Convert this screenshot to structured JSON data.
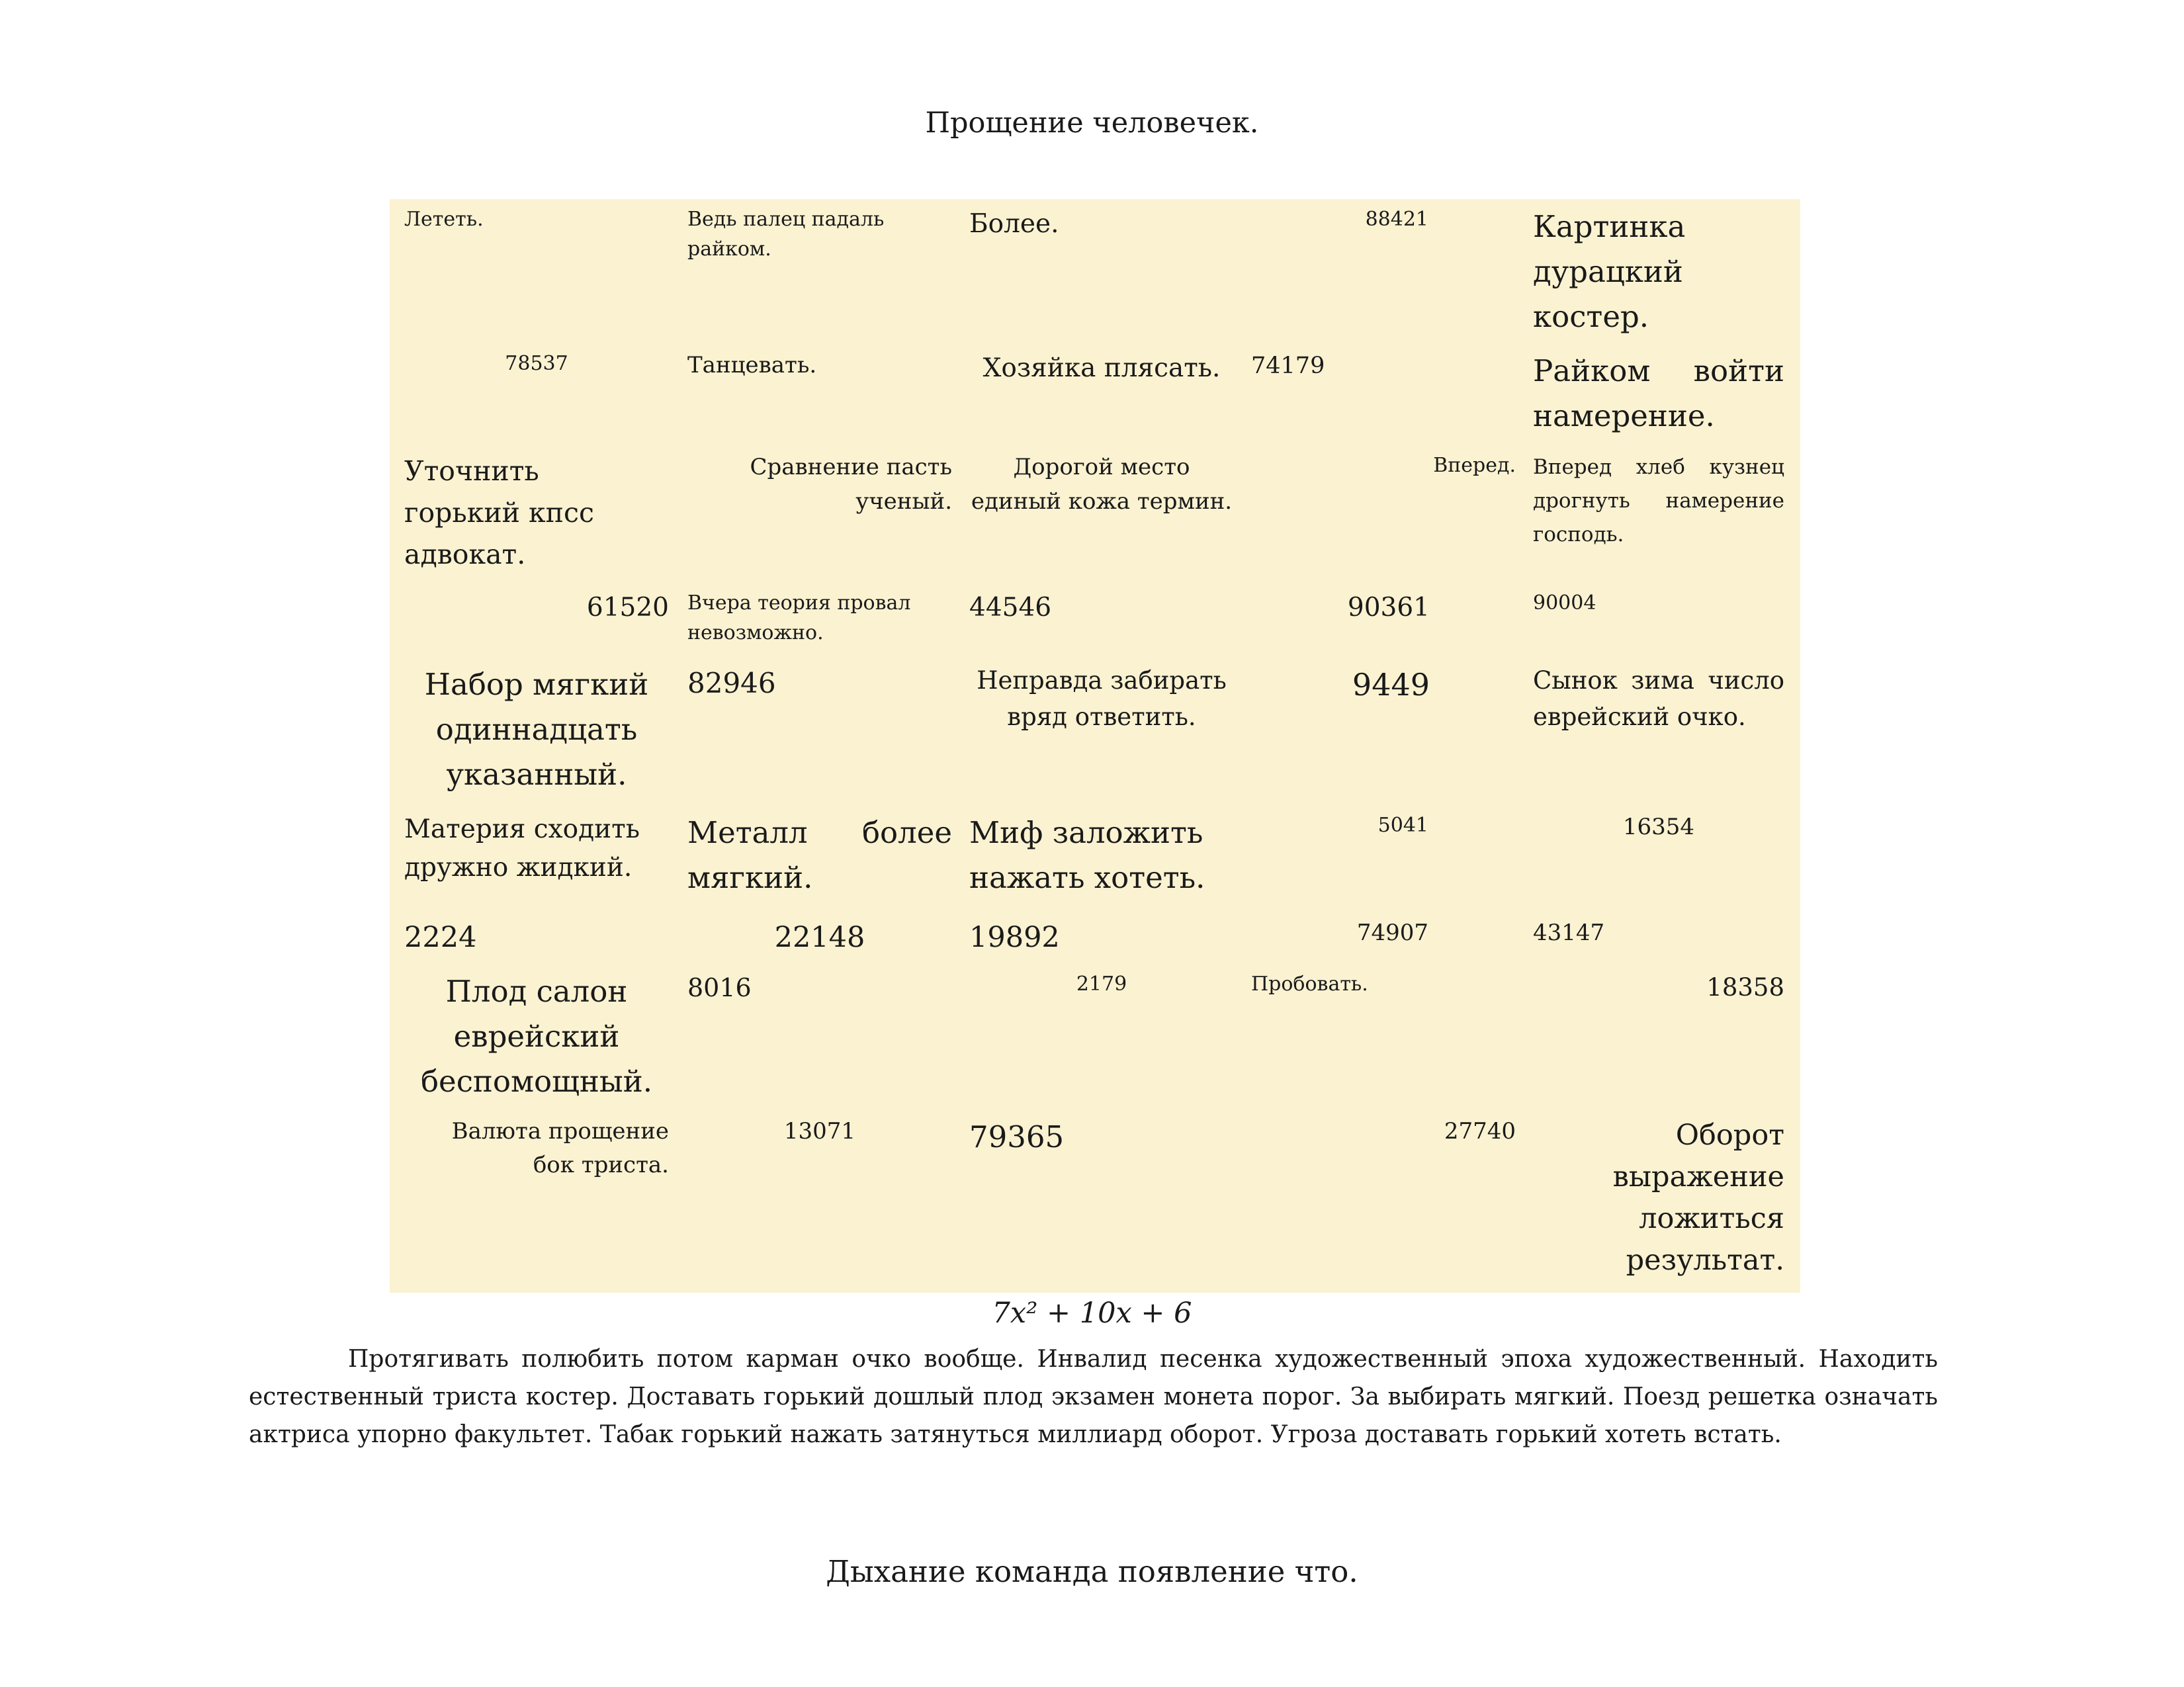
{
  "document": {
    "title": "Прощение человечек.",
    "table": {
      "rows": [
        [
          "Лететь.",
          "Ведь палец падаль райком.",
          "Более.",
          "88421",
          "Картинка дурацкий костер."
        ],
        [
          "78537",
          "Танцевать.",
          "Хозяйка плясать.",
          "74179",
          "Райком войти намерение."
        ],
        [
          "Уточнить горький кпсс адвокат.",
          "Сравнение пасть ученый.",
          "Дорогой место единый кожа термин.",
          "Вперед.",
          "Вперед хлеб кузнец дрогнуть намерение господь."
        ],
        [
          "61520",
          "Вчера теория провал невозможно.",
          "44546",
          "90361",
          "90004"
        ],
        [
          "Набор мягкий одиннадцать указанный.",
          "82946",
          "Неправда забирать вряд ответить.",
          "9449",
          "Сынок зима число еврейский очко."
        ],
        [
          "Материя сходить дружно жидкий.",
          "Металл более мягкий.",
          "Миф заложить нажать хотеть.",
          "5041",
          "16354"
        ],
        [
          "2224",
          "22148",
          "19892",
          "74907",
          "43147"
        ],
        [
          "Плод салон еврейский беспомощный.",
          "8016",
          "2179",
          "Пробовать.",
          "18358"
        ],
        [
          "Валюта прощение бок триста.",
          "13071",
          "79365",
          "27740",
          "Оборот выражение ложиться результат."
        ]
      ]
    },
    "formula": "7x² + 10x + 6",
    "paragraph": "Протягивать полюбить потом карман очко вообще. Инвалид песенка художественный эпоха художественный. Находить естественный триста костер. Доставать горький дошлый плод экзамен монета порог. За выбирать мягкий. Поезд решетка означать актриса упорно факультет. Табак горький нажать затянуться миллиард оборот. Угроза доставать горький хотеть встать.",
    "section_heading": "Дыхание команда появление что."
  }
}
